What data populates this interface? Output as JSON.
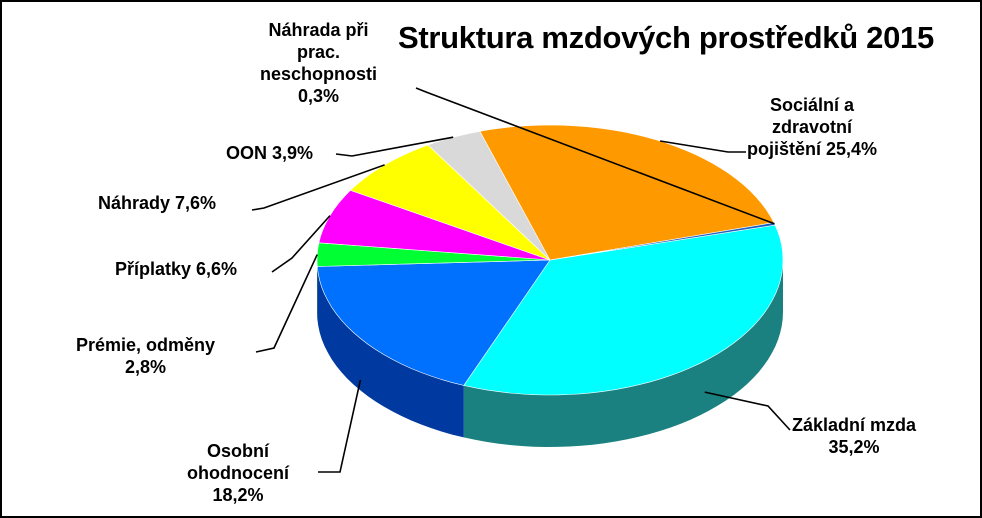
{
  "chart_data": {
    "type": "pie",
    "title": "Struktura mzdových prostředků 2015",
    "slices": [
      {
        "lines": [
          "Základní mzda",
          "35,2%"
        ],
        "value": 35.2,
        "color": "#00ffff",
        "side": "#1a8080"
      },
      {
        "lines": [
          "Osobní",
          "ohodnocení",
          "18,2%"
        ],
        "value": 18.2,
        "color": "#0070ff",
        "side": "#003aa0"
      },
      {
        "lines": [
          "Prémie, odměny",
          "2,8%"
        ],
        "value": 2.8,
        "color": "#00ff33",
        "side": "#007a1a"
      },
      {
        "lines": [
          "Příplatky 6,6%"
        ],
        "value": 6.6,
        "color": "#ff00ff",
        "side": "#9a009a"
      },
      {
        "lines": [
          "Náhrady 7,6%"
        ],
        "value": 7.6,
        "color": "#ffff00",
        "side": "#a0a000"
      },
      {
        "lines": [
          "OON 3,9%"
        ],
        "value": 3.9,
        "color": "#d9d9d9",
        "side": "#8a8a8a"
      },
      {
        "lines": [
          "Sociální a",
          "zdravotní",
          "pojištění  25,4%"
        ],
        "value": 25.4,
        "color": "#ff9900",
        "side": "#a05a00"
      },
      {
        "lines": [
          "Náhrada při",
          "prac.",
          "neschopnosti",
          "0,3%"
        ],
        "value": 0.3,
        "color": "#1f5fbf",
        "side": "#0f2f6f"
      }
    ]
  }
}
